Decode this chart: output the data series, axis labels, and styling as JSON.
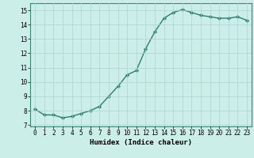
{
  "x": [
    0,
    1,
    2,
    3,
    4,
    5,
    6,
    7,
    8,
    9,
    10,
    11,
    12,
    13,
    14,
    15,
    16,
    17,
    18,
    19,
    20,
    21,
    22,
    23
  ],
  "y": [
    8.1,
    7.7,
    7.7,
    7.5,
    7.6,
    7.8,
    8.0,
    8.3,
    9.0,
    9.7,
    10.5,
    10.8,
    12.3,
    13.5,
    14.45,
    14.85,
    15.05,
    14.85,
    14.65,
    14.55,
    14.45,
    14.45,
    14.55,
    14.3
  ],
  "line_color": "#2e7d6e",
  "marker": "D",
  "marker_size": 2.2,
  "bg_color": "#cceee8",
  "grid_color": "#aad4ce",
  "xlabel": "Humidex (Indice chaleur)",
  "xlabel_fontsize": 6.5,
  "ylabel_ticks": [
    7,
    8,
    9,
    10,
    11,
    12,
    13,
    14,
    15
  ],
  "xlim": [
    -0.5,
    23.5
  ],
  "ylim": [
    6.9,
    15.5
  ],
  "tick_fontsize": 5.5,
  "line_width": 1.0
}
